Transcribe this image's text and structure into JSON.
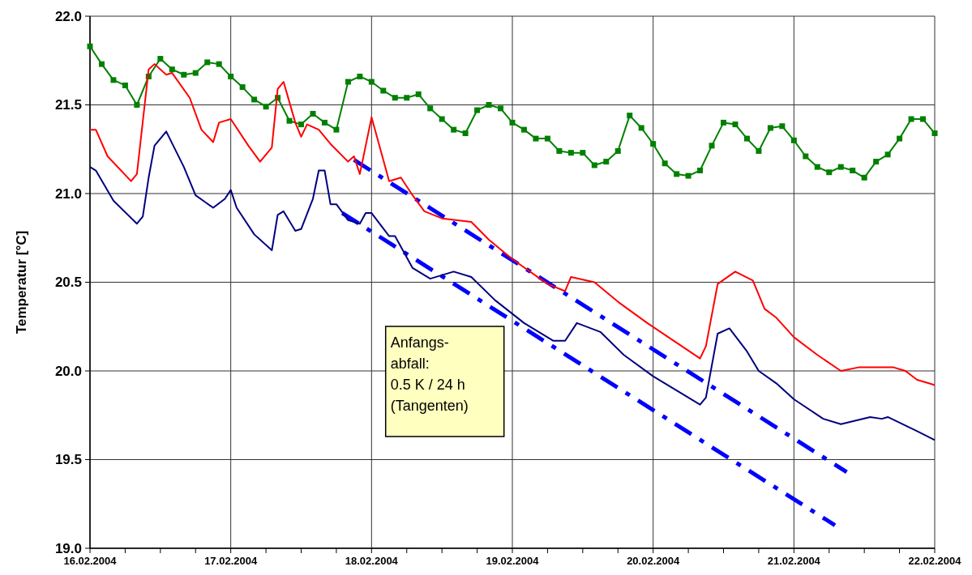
{
  "chart_data": {
    "type": "line",
    "ylabel": "Temperatur [°C]",
    "xlim": [
      "2004-02-16",
      "2004-02-22"
    ],
    "xticks": [
      {
        "value": "2004-02-16",
        "label": "16.02.2004"
      },
      {
        "value": "2004-02-16T06:00",
        "label": null
      },
      {
        "value": "2004-02-16T12:00",
        "label": null
      },
      {
        "value": "2004-02-16T18:00",
        "label": null
      },
      {
        "value": "2004-02-17",
        "label": "17.02.2004"
      },
      {
        "value": "2004-02-17T06:00",
        "label": null
      },
      {
        "value": "2004-02-17T12:00",
        "label": null
      },
      {
        "value": "2004-02-17T18:00",
        "label": null
      },
      {
        "value": "2004-02-18",
        "label": "18.02.2004"
      },
      {
        "value": "2004-02-18T06:00",
        "label": null
      },
      {
        "value": "2004-02-18T12:00",
        "label": null
      },
      {
        "value": "2004-02-18T18:00",
        "label": null
      },
      {
        "value": "2004-02-19",
        "label": "19.02.2004"
      },
      {
        "value": "2004-02-19T06:00",
        "label": null
      },
      {
        "value": "2004-02-19T12:00",
        "label": null
      },
      {
        "value": "2004-02-19T18:00",
        "label": null
      },
      {
        "value": "2004-02-20",
        "label": "20.02.2004"
      },
      {
        "value": "2004-02-20T06:00",
        "label": null
      },
      {
        "value": "2004-02-20T12:00",
        "label": null
      },
      {
        "value": "2004-02-20T18:00",
        "label": null
      },
      {
        "value": "2004-02-21",
        "label": "21.02.2004"
      },
      {
        "value": "2004-02-21T06:00",
        "label": null
      },
      {
        "value": "2004-02-21T12:00",
        "label": null
      },
      {
        "value": "2004-02-21T18:00",
        "label": null
      },
      {
        "value": "2004-02-22",
        "label": "22.02.2004"
      }
    ],
    "ylim": [
      19,
      22
    ],
    "yticks": [
      {
        "value": 19,
        "label": "19.0"
      },
      {
        "value": 19.5,
        "label": "19.5"
      },
      {
        "value": 20,
        "label": "20.0"
      },
      {
        "value": 20.5,
        "label": "20.5"
      },
      {
        "value": 21,
        "label": "21.0"
      },
      {
        "value": 21.5,
        "label": "21.5"
      },
      {
        "value": 22,
        "label": "22.0"
      }
    ],
    "grid": true,
    "annotations": [
      "Anfangs-\nabfall:\n0.5 K / 24 h\n(Tangenten)"
    ],
    "series": [
      {
        "color": "#0000ff",
        "marker": "none",
        "line_style": "dashed",
        "x": [
          "2004-02-17T21:00",
          "2004-02-21T09:00"
        ],
        "values": [
          21.19,
          19.43
        ]
      },
      {
        "color": "#0000ff",
        "marker": "none",
        "line_style": "dashed",
        "x": [
          "2004-02-17T19:00",
          "2004-02-21T07:00"
        ],
        "values": [
          20.89,
          19.13
        ]
      },
      {
        "color": "#008000",
        "marker": "square",
        "line_style": "solid",
        "x": [
          "2004-02-16T00:00",
          "2004-02-16T02:00",
          "2004-02-16T04:00",
          "2004-02-16T06:00",
          "2004-02-16T08:00",
          "2004-02-16T10:00",
          "2004-02-16T12:00",
          "2004-02-16T14:00",
          "2004-02-16T16:00",
          "2004-02-16T18:00",
          "2004-02-16T20:00",
          "2004-02-16T22:00",
          "2004-02-17T00:00",
          "2004-02-17T02:00",
          "2004-02-17T04:00",
          "2004-02-17T06:00",
          "2004-02-17T08:00",
          "2004-02-17T10:00",
          "2004-02-17T12:00",
          "2004-02-17T14:00",
          "2004-02-17T16:00",
          "2004-02-17T18:00",
          "2004-02-17T20:00",
          "2004-02-17T22:00",
          "2004-02-18T00:00",
          "2004-02-18T02:00",
          "2004-02-18T04:00",
          "2004-02-18T06:00",
          "2004-02-18T08:00",
          "2004-02-18T10:00",
          "2004-02-18T12:00",
          "2004-02-18T14:00",
          "2004-02-18T16:00",
          "2004-02-18T18:00",
          "2004-02-18T20:00",
          "2004-02-18T22:00",
          "2004-02-19T00:00",
          "2004-02-19T02:00",
          "2004-02-19T04:00",
          "2004-02-19T06:00",
          "2004-02-19T08:00",
          "2004-02-19T10:00",
          "2004-02-19T12:00",
          "2004-02-19T14:00",
          "2004-02-19T16:00",
          "2004-02-19T18:00",
          "2004-02-19T20:00",
          "2004-02-19T22:00",
          "2004-02-20T00:00",
          "2004-02-20T02:00",
          "2004-02-20T04:00",
          "2004-02-20T06:00",
          "2004-02-20T08:00",
          "2004-02-20T10:00",
          "2004-02-20T12:00",
          "2004-02-20T14:00",
          "2004-02-20T16:00",
          "2004-02-20T18:00",
          "2004-02-20T20:00",
          "2004-02-20T22:00",
          "2004-02-21T00:00",
          "2004-02-21T02:00",
          "2004-02-21T04:00",
          "2004-02-21T06:00",
          "2004-02-21T08:00",
          "2004-02-21T10:00",
          "2004-02-21T12:00",
          "2004-02-21T14:00",
          "2004-02-21T16:00",
          "2004-02-21T18:00",
          "2004-02-21T20:00",
          "2004-02-21T22:00",
          "2004-02-22T00:00"
        ],
        "values": [
          21.83,
          21.73,
          21.64,
          21.61,
          21.5,
          21.66,
          21.76,
          21.7,
          21.67,
          21.68,
          21.74,
          21.73,
          21.66,
          21.6,
          21.53,
          21.49,
          21.54,
          21.41,
          21.39,
          21.45,
          21.4,
          21.36,
          21.63,
          21.66,
          21.63,
          21.58,
          21.54,
          21.54,
          21.56,
          21.48,
          21.42,
          21.36,
          21.34,
          21.47,
          21.5,
          21.48,
          21.4,
          21.36,
          21.31,
          21.31,
          21.24,
          21.23,
          21.23,
          21.16,
          21.18,
          21.24,
          21.44,
          21.37,
          21.28,
          21.17,
          21.11,
          21.1,
          21.13,
          21.27,
          21.4,
          21.39,
          21.31,
          21.24,
          21.37,
          21.38,
          21.3,
          21.21,
          21.15,
          21.12,
          21.15,
          21.13,
          21.09,
          21.18,
          21.22,
          21.31,
          21.42,
          21.42,
          21.34
        ]
      },
      {
        "color": "#ff0000",
        "marker": "none",
        "line_style": "solid",
        "x": [
          "2004-02-16T00:00",
          "2004-02-16T01:00",
          "2004-02-16T03:00",
          "2004-02-16T07:00",
          "2004-02-16T08:00",
          "2004-02-16T10:00",
          "2004-02-16T11:00",
          "2004-02-16T13:00",
          "2004-02-16T14:00",
          "2004-02-16T17:00",
          "2004-02-16T19:00",
          "2004-02-16T21:00",
          "2004-02-16T22:00",
          "2004-02-17T00:00",
          "2004-02-17T03:00",
          "2004-02-17T05:00",
          "2004-02-17T07:00",
          "2004-02-17T08:00",
          "2004-02-17T09:00",
          "2004-02-17T11:00",
          "2004-02-17T12:00",
          "2004-02-17T13:00",
          "2004-02-17T15:00",
          "2004-02-17T17:00",
          "2004-02-17T20:00",
          "2004-02-17T21:00",
          "2004-02-17T22:00",
          "2004-02-18T00:00",
          "2004-02-18T03:00",
          "2004-02-18T05:00",
          "2004-02-18T07:00",
          "2004-02-18T09:00",
          "2004-02-18T12:00",
          "2004-02-18T17:00",
          "2004-02-18T20:00",
          "2004-02-19T00:00",
          "2004-02-19T06:00",
          "2004-02-19T09:00",
          "2004-02-19T10:00",
          "2004-02-19T14:00",
          "2004-02-19T18:00",
          "2004-02-19T23:00",
          "2004-02-20T08:00",
          "2004-02-20T09:00",
          "2004-02-20T11:00",
          "2004-02-20T14:00",
          "2004-02-20T17:00",
          "2004-02-20T19:00",
          "2004-02-20T21:00",
          "2004-02-21T00:00",
          "2004-02-21T04:00",
          "2004-02-21T08:00",
          "2004-02-21T11:00",
          "2004-02-21T17:00",
          "2004-02-21T19:00",
          "2004-02-21T21:00",
          "2004-02-21T23:00",
          "2004-02-22T00:00"
        ],
        "values": [
          21.36,
          21.36,
          21.21,
          21.07,
          21.11,
          21.7,
          21.73,
          21.67,
          21.68,
          21.54,
          21.36,
          21.29,
          21.4,
          21.42,
          21.27,
          21.18,
          21.26,
          21.59,
          21.63,
          21.4,
          21.32,
          21.39,
          21.36,
          21.28,
          21.18,
          21.21,
          21.11,
          21.43,
          21.07,
          21.09,
          20.99,
          20.9,
          20.86,
          20.84,
          20.74,
          20.63,
          20.49,
          20.45,
          20.53,
          20.5,
          20.39,
          20.27,
          20.07,
          20.14,
          20.49,
          20.56,
          20.51,
          20.35,
          20.3,
          20.19,
          20.09,
          20.0,
          20.02,
          20.02,
          20.0,
          19.95,
          19.93,
          19.92
        ]
      },
      {
        "color": "#000080",
        "marker": "none",
        "line_style": "solid",
        "x": [
          "2004-02-16T00:00",
          "2004-02-16T01:00",
          "2004-02-16T04:00",
          "2004-02-16T08:00",
          "2004-02-16T09:00",
          "2004-02-16T10:00",
          "2004-02-16T11:00",
          "2004-02-16T13:00",
          "2004-02-16T16:00",
          "2004-02-16T18:00",
          "2004-02-16T21:00",
          "2004-02-16T23:00",
          "2004-02-17T00:00",
          "2004-02-17T01:00",
          "2004-02-17T04:00",
          "2004-02-17T07:00",
          "2004-02-17T08:00",
          "2004-02-17T09:00",
          "2004-02-17T11:00",
          "2004-02-17T12:00",
          "2004-02-17T14:00",
          "2004-02-17T15:00",
          "2004-02-17T16:00",
          "2004-02-17T17:00",
          "2004-02-17T18:00",
          "2004-02-17T20:00",
          "2004-02-17T22:00",
          "2004-02-17T23:00",
          "2004-02-18T00:00",
          "2004-02-18T03:00",
          "2004-02-18T04:00",
          "2004-02-18T07:00",
          "2004-02-18T10:00",
          "2004-02-18T14:00",
          "2004-02-18T17:00",
          "2004-02-18T21:00",
          "2004-02-19T02:00",
          "2004-02-19T07:00",
          "2004-02-19T09:00",
          "2004-02-19T11:00",
          "2004-02-19T15:00",
          "2004-02-19T19:00",
          "2004-02-20T00:00",
          "2004-02-20T04:00",
          "2004-02-20T08:00",
          "2004-02-20T09:00",
          "2004-02-20T11:00",
          "2004-02-20T13:00",
          "2004-02-20T16:00",
          "2004-02-20T18:00",
          "2004-02-20T21:00",
          "2004-02-21T00:00",
          "2004-02-21T05:00",
          "2004-02-21T08:00",
          "2004-02-21T13:00",
          "2004-02-21T15:00",
          "2004-02-21T16:00",
          "2004-02-21T21:00",
          "2004-02-22T00:00"
        ],
        "values": [
          21.15,
          21.13,
          20.96,
          20.83,
          20.87,
          21.09,
          21.27,
          21.35,
          21.15,
          20.99,
          20.92,
          20.97,
          21.02,
          20.92,
          20.77,
          20.68,
          20.88,
          20.9,
          20.79,
          20.8,
          20.97,
          21.13,
          21.13,
          20.94,
          20.94,
          20.85,
          20.83,
          20.89,
          20.89,
          20.76,
          20.76,
          20.58,
          20.52,
          20.56,
          20.53,
          20.4,
          20.27,
          20.17,
          20.17,
          20.27,
          20.22,
          20.09,
          19.97,
          19.89,
          19.81,
          19.85,
          20.21,
          20.24,
          20.11,
          20.0,
          19.93,
          19.84,
          19.73,
          19.7,
          19.74,
          19.73,
          19.74,
          19.66,
          19.61
        ]
      }
    ]
  }
}
